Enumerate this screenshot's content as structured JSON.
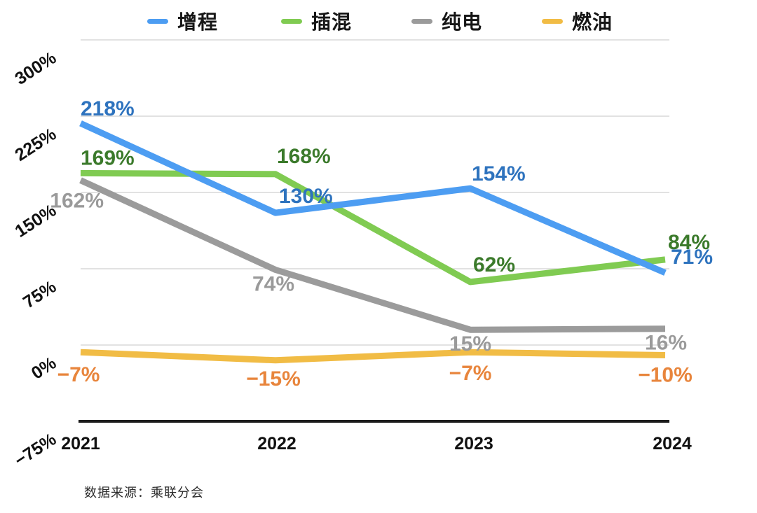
{
  "source_note": "数据来源：乘联分会",
  "colors": {
    "grid": "#d9d9d9",
    "axis": "#1c1c1c",
    "tick_text": "#111111",
    "background": "#ffffff"
  },
  "chart_data": {
    "type": "line",
    "title": "",
    "xlabel": "",
    "ylabel": "",
    "categories": [
      "2021",
      "2022",
      "2023",
      "2024"
    ],
    "series": [
      {
        "id": "erev",
        "name": "增程",
        "color": "#4d9df2",
        "label_color": "#2e73be",
        "values": [
          218,
          130,
          154,
          71
        ],
        "labels": [
          "218%",
          "130%",
          "154%",
          "71%"
        ]
      },
      {
        "id": "phev",
        "name": "插混",
        "color": "#80cb52",
        "label_color": "#3b7a2b",
        "values": [
          169,
          168,
          62,
          84
        ],
        "labels": [
          "169%",
          "168%",
          "62%",
          "84%"
        ]
      },
      {
        "id": "bev",
        "name": "纯电",
        "color": "#9b9b9b",
        "label_color": "#9a9a9a",
        "values": [
          162,
          74,
          15,
          16
        ],
        "labels": [
          "162%",
          "74%",
          "15%",
          "16%"
        ]
      },
      {
        "id": "ice",
        "name": "燃油",
        "color": "#f1bc45",
        "label_color": "#e8853c",
        "values": [
          -7,
          -15,
          -7,
          -10
        ],
        "labels": [
          "−7%",
          "−15%",
          "−7%",
          "−10%"
        ]
      }
    ],
    "yticks": [
      {
        "value": 300,
        "label": "300%"
      },
      {
        "value": 225,
        "label": "225%"
      },
      {
        "value": 150,
        "label": "150%"
      },
      {
        "value": 75,
        "label": "75%"
      },
      {
        "value": 0,
        "label": "0%"
      },
      {
        "value": -75,
        "label": "−75%"
      }
    ],
    "ylim": [
      -75,
      300
    ],
    "grid": true,
    "legend_position": "top"
  }
}
